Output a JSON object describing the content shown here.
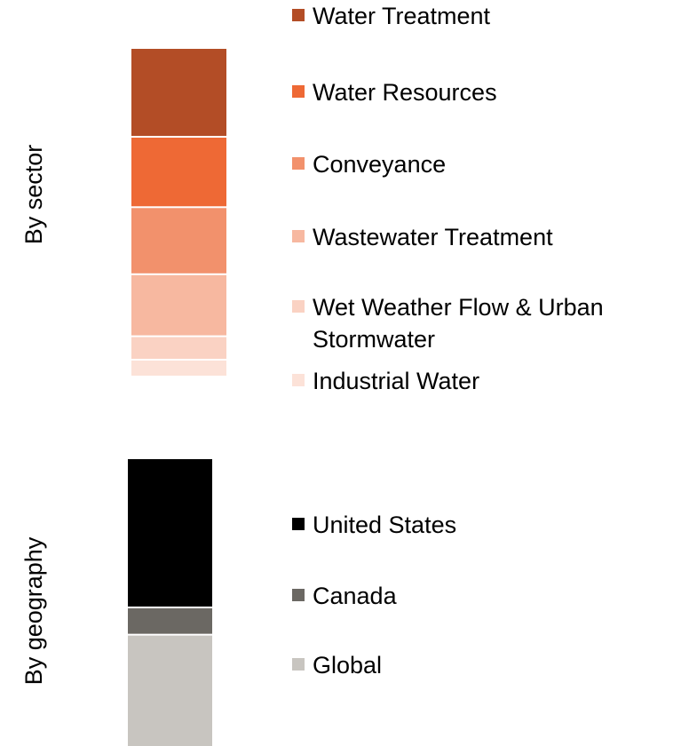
{
  "chart_data": [
    {
      "type": "bar",
      "stacked": true,
      "ylabel": "By sector",
      "series": [
        {
          "name": "Water Treatment",
          "value": 26.5,
          "color": "#B34D26"
        },
        {
          "name": "Water Resources",
          "value": 21.0,
          "color": "#EE6935"
        },
        {
          "name": "Conveyance",
          "value": 20.0,
          "color": "#F2916C"
        },
        {
          "name": "Wastewater Treatment",
          "value": 18.5,
          "color": "#F7B8A0"
        },
        {
          "name": "Wet Weather Flow & Urban Stormwater",
          "value": 7.0,
          "color": "#FAD2C3"
        },
        {
          "name": "Industrial Water",
          "value": 4.5,
          "color": "#FCE2D8"
        }
      ],
      "legend": "right"
    },
    {
      "type": "bar",
      "stacked": true,
      "ylabel": "By geography",
      "series": [
        {
          "name": "United States",
          "value": 52.0,
          "color": "#000000"
        },
        {
          "name": "Canada",
          "value": 9.5,
          "color": "#6B6863"
        },
        {
          "name": "Global",
          "value": 38.5,
          "color": "#C8C5C0"
        }
      ],
      "legend": "right"
    }
  ]
}
